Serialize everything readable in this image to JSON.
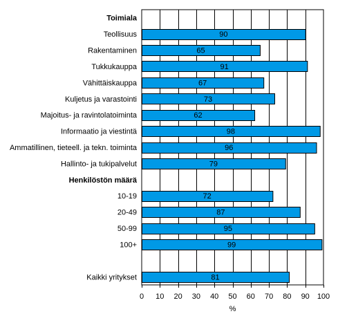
{
  "chart_data": {
    "type": "bar",
    "orientation": "horizontal",
    "xlabel": "%",
    "xlim": [
      0,
      100
    ],
    "xticks": [
      "0",
      "10",
      "20",
      "30",
      "40",
      "50",
      "60",
      "70",
      "80",
      "90",
      "100"
    ],
    "grid": "vertical",
    "bar_color": "#0099e6",
    "bar_edge_color": "#000000",
    "groups": [
      {
        "header": "Toimiala",
        "items": [
          {
            "label": "Teollisuus",
            "value": 90
          },
          {
            "label": "Rakentaminen",
            "value": 65
          },
          {
            "label": "Tukkukauppa",
            "value": 91
          },
          {
            "label": "Vähittäiskauppa",
            "value": 67
          },
          {
            "label": "Kuljetus ja varastointi",
            "value": 73
          },
          {
            "label": "Majoitus- ja ravintolatoiminta",
            "value": 62
          },
          {
            "label": "Informaatio ja viestintä",
            "value": 98
          },
          {
            "label": "Ammatillinen, tieteell. ja tekn. toiminta",
            "value": 96
          },
          {
            "label": "Hallinto- ja tukipalvelut",
            "value": 79
          }
        ]
      },
      {
        "header": "Henkilöstön määrä",
        "items": [
          {
            "label": "10-19",
            "value": 72
          },
          {
            "label": "20-49",
            "value": 87
          },
          {
            "label": "50-99",
            "value": 95
          },
          {
            "label": "100+",
            "value": 99
          }
        ]
      },
      {
        "header": "",
        "items": [
          {
            "label": "Kaikki yritykset",
            "value": 81
          }
        ]
      }
    ]
  }
}
